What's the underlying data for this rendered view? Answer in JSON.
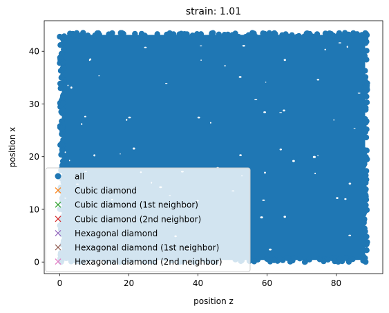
{
  "chart_data": {
    "type": "scatter",
    "title": "strain: 1.01",
    "xlabel": "position z",
    "ylabel": "position x",
    "xlim": [
      -4.5,
      93.5
    ],
    "ylim": [
      -2.2,
      45.8
    ],
    "xticks": [
      0,
      20,
      40,
      60,
      80
    ],
    "yticks": [
      0,
      10,
      20,
      30,
      40
    ],
    "x_tick_labels": [
      "0",
      "20",
      "40",
      "60",
      "80"
    ],
    "y_tick_labels": [
      "0",
      "10",
      "20",
      "30",
      "40"
    ],
    "grid": false,
    "legend_position": "lower left",
    "series": [
      {
        "name": "all",
        "marker": "circle",
        "color": "#1f77b4",
        "x_range": [
          0,
          89
        ],
        "y_range": [
          0,
          43.5
        ],
        "fill": "dense"
      },
      {
        "name": "Cubic diamond",
        "marker": "x",
        "color": "#ff7f0e",
        "points": []
      },
      {
        "name": "Cubic diamond (1st neighbor)",
        "marker": "x",
        "color": "#2ca02c",
        "points": []
      },
      {
        "name": "Cubic diamond (2nd neighbor)",
        "marker": "x",
        "color": "#d62728",
        "points": []
      },
      {
        "name": "Hexagonal diamond",
        "marker": "x",
        "color": "#9467bd",
        "points": []
      },
      {
        "name": "Hexagonal diamond (1st neighbor)",
        "marker": "x",
        "color": "#8c564b",
        "points": []
      },
      {
        "name": "Hexagonal diamond (2nd neighbor)",
        "marker": "x",
        "color": "#e377c2",
        "points": []
      }
    ]
  }
}
